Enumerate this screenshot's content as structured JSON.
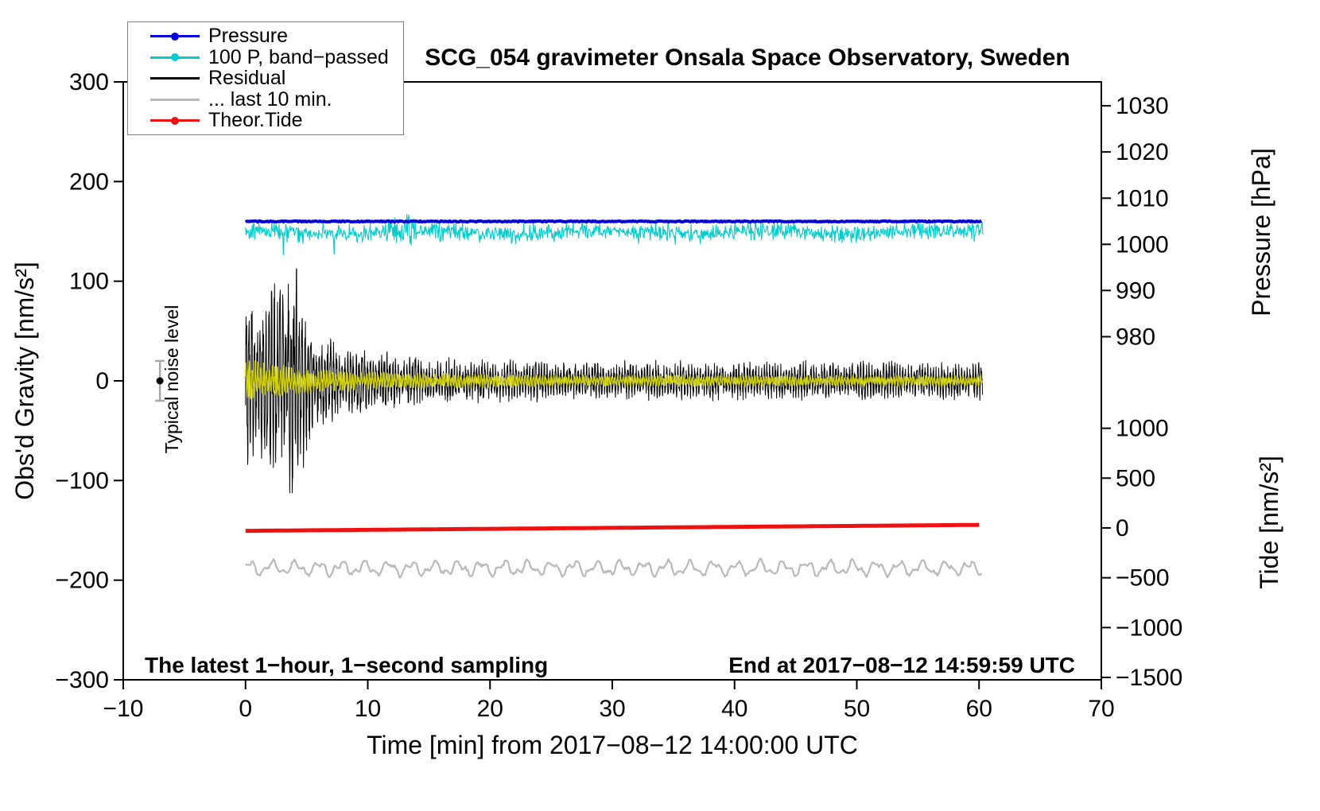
{
  "title": "SCG_054 gravimeter Onsala Space Observatory, Sweden",
  "annotations": {
    "noise_label": "Typical noise level",
    "sampling_note": "The latest 1−hour, 1−second sampling",
    "end_note": "End at 2017−08−12 14:59:59 UTC"
  },
  "chart_data": {
    "type": "line",
    "title": "SCG_054 gravimeter Onsala Space Observatory, Sweden",
    "xlabel": "Time [min] from 2017−08−12 14:00:00 UTC",
    "ylabel_left": "Obs'd Gravity [nm/s²]",
    "ylabel_pressure": "Pressure [hPa]",
    "ylabel_tide": "Tide [nm/s²]",
    "xlim": [
      -10,
      70
    ],
    "ylim_left": [
      -300,
      300
    ],
    "grid": false,
    "x_ticks": {
      "values": [
        -10,
        0,
        10,
        20,
        30,
        40,
        50,
        60,
        70
      ],
      "labels": [
        "−10",
        "0",
        "10",
        "20",
        "30",
        "40",
        "50",
        "60",
        "70"
      ]
    },
    "left_ticks": {
      "values": [
        -300,
        -200,
        -100,
        0,
        100,
        200,
        300
      ],
      "labels": [
        "−300",
        "−200",
        "−100",
        "0",
        "100",
        "200",
        "300"
      ]
    },
    "pressure_ticks": {
      "values_hpa": [
        1030,
        1020,
        1010,
        1000,
        990,
        980
      ],
      "labels": [
        "1030",
        "1020",
        "1010",
        "1000",
        "990",
        "980"
      ],
      "left_axis_units": [
        276,
        229.7,
        183.3,
        137,
        90.7,
        44.3
      ]
    },
    "tide_ticks": {
      "values": [
        1000,
        500,
        0,
        -500,
        -1000,
        -1500
      ],
      "labels": [
        "1000",
        "500",
        "0",
        "−500",
        "−1000",
        "−1500"
      ],
      "left_axis_units": [
        -47.6,
        -97.6,
        -147.6,
        -197.6,
        -247.6,
        -297.6
      ]
    },
    "noise_marker": {
      "x_min": -7,
      "value": 0,
      "error_bar": 20,
      "color": "#000000",
      "bar_color": "#a8a8a8"
    },
    "seed": 42,
    "series": [
      {
        "name": "pressure",
        "legend": "Pressure",
        "color": "#0000dd",
        "marker": "dot",
        "width": 4,
        "baseline_left_units": 160,
        "value_hpa": 1005,
        "noise_amp": 0.5,
        "x_range": [
          0,
          60.3
        ]
      },
      {
        "name": "pressure-bandpassed",
        "legend": "100 P, band−passed",
        "color": "#00cccc",
        "marker": "dot",
        "width": 1.1,
        "baseline_left_units": 149,
        "noise_amp": 8,
        "x_range": [
          0,
          60.3
        ]
      },
      {
        "name": "residual",
        "legend": "Residual",
        "color": "#000000",
        "marker": "line",
        "width": 1,
        "baseline_left_units": 0,
        "envelope": {
          "base": 16,
          "decay_amp": 66,
          "decay_tau": 5.5,
          "burst_amp": 52,
          "burst_center": 3.6,
          "burst_width": 2.2
        },
        "x_range": [
          0,
          60.3
        ]
      },
      {
        "name": "residual-smoothed",
        "legend": null,
        "color": "#cdcd00",
        "marker": "line",
        "width": 1.6,
        "baseline_left_units": 0,
        "envelope": {
          "base": 5,
          "decay_amp": 14,
          "decay_tau": 7
        },
        "x_range": [
          0,
          60.3
        ]
      },
      {
        "name": "residual-last10",
        "legend": "... last 10 min.",
        "color": "#b9b9b9",
        "marker": "line",
        "width": 2.2,
        "baseline_left_units": -188,
        "noise_amp": 8,
        "x_range": [
          0,
          60.3
        ]
      },
      {
        "name": "theor-tide",
        "legend": "Theor.Tide",
        "color": "#ee1111",
        "marker": "dot",
        "width": 5,
        "start_left_units": -150.5,
        "end_left_units": -144.5,
        "tide_start_nms2": -25,
        "tide_end_nms2": 30,
        "x_range": [
          0,
          60.3
        ]
      }
    ],
    "legend": {
      "items": [
        {
          "label": "Pressure",
          "color": "#0000dd",
          "marker": "dot"
        },
        {
          "label": "100 P, band−passed",
          "color": "#00cccc",
          "marker": "dot"
        },
        {
          "label": "Residual",
          "color": "#000000",
          "marker": "line"
        },
        {
          "label": "... last 10 min.",
          "color": "#b9b9b9",
          "marker": "line"
        },
        {
          "label": "Theor.Tide",
          "color": "#ee1111",
          "marker": "dot"
        }
      ]
    }
  }
}
